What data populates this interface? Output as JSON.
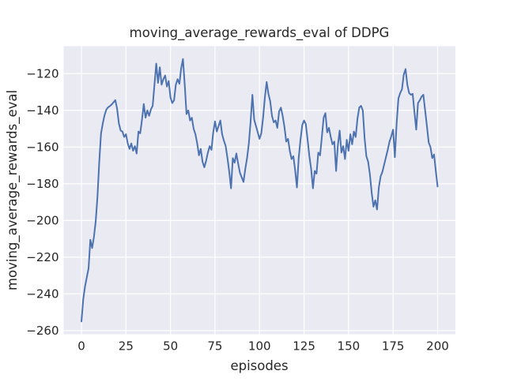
{
  "figure": {
    "title": "moving_average_rewards_eval of DDPG",
    "xlabel": "episodes",
    "ylabel": "moving_average_rewards_eval"
  },
  "chart_data": {
    "type": "line",
    "title": "moving_average_rewards_eval of DDPG",
    "xlabel": "episodes",
    "ylabel": "moving_average_rewards_eval",
    "grid": true,
    "legend_position": "none",
    "background_color": "#eaeaf2",
    "grid_color": "#ffffff",
    "text_color": "#262626",
    "line_color": "#4c72b0",
    "x_ticks": [
      0,
      25,
      50,
      75,
      100,
      125,
      150,
      175,
      200
    ],
    "y_ticks": [
      -120,
      -140,
      -160,
      -180,
      -200,
      -220,
      -240,
      -260
    ],
    "xlim": [
      -10,
      210
    ],
    "ylim": [
      -262,
      -105
    ],
    "x_start": 0,
    "x_step": 1,
    "series": [
      {
        "name": "moving_average_rewards_eval",
        "values": [
          -255,
          -243,
          -236,
          -231,
          -226,
          -210.5,
          -215,
          -209,
          -200.5,
          -187,
          -168,
          -152.5,
          -147,
          -142.5,
          -139.5,
          -138.3,
          -137.6,
          -136.8,
          -135.6,
          -134.4,
          -139,
          -147,
          -151,
          -151.5,
          -154.5,
          -153,
          -158,
          -161,
          -158,
          -162,
          -159.5,
          -163.5,
          -151.5,
          -152.5,
          -145,
          -136.5,
          -144,
          -140,
          -143,
          -139.5,
          -137.5,
          -126,
          -114.5,
          -125,
          -116.5,
          -126,
          -123,
          -121,
          -127,
          -124,
          -133,
          -136,
          -134.5,
          -126,
          -123,
          -125.5,
          -117,
          -112,
          -126,
          -142,
          -140,
          -145.5,
          -144,
          -150,
          -153,
          -158,
          -164.5,
          -161,
          -168,
          -171,
          -167.5,
          -163,
          -159.5,
          -161.5,
          -152,
          -146,
          -151.5,
          -148.5,
          -145.5,
          -153,
          -156.5,
          -159.5,
          -166,
          -173.5,
          -182.5,
          -166,
          -168.5,
          -163.5,
          -169,
          -174,
          -176.5,
          -179,
          -172,
          -166,
          -158,
          -146,
          -131.5,
          -145,
          -148.5,
          -152,
          -155.5,
          -152.5,
          -144,
          -133,
          -124.5,
          -131,
          -135,
          -143,
          -146.5,
          -145.5,
          -149.5,
          -140.5,
          -138.5,
          -143,
          -149,
          -157,
          -155.5,
          -162,
          -166.5,
          -165,
          -172.5,
          -182,
          -166,
          -156,
          -148,
          -145.5,
          -147.5,
          -156,
          -165,
          -172,
          -182.5,
          -173,
          -174.5,
          -163,
          -164.5,
          -154.5,
          -144,
          -141.5,
          -152,
          -149.5,
          -154.5,
          -158.5,
          -157,
          -173,
          -159,
          -151,
          -163,
          -159.5,
          -166.5,
          -156,
          -162,
          -153,
          -158.5,
          -151.5,
          -154.5,
          -144.5,
          -138.5,
          -137.5,
          -140,
          -155,
          -165,
          -168,
          -175,
          -185,
          -192.5,
          -189,
          -194,
          -182,
          -176,
          -173.5,
          -169.5,
          -165.5,
          -161.5,
          -157,
          -154,
          -150.5,
          -165.5,
          -147,
          -133.5,
          -130.5,
          -128.5,
          -120.5,
          -117.5,
          -126,
          -130.5,
          -131.5,
          -131,
          -141,
          -150.5,
          -136,
          -134.5,
          -132.5,
          -131.5,
          -140,
          -148.5,
          -157.5,
          -160,
          -166,
          -164,
          -173,
          -181.5
        ]
      }
    ]
  }
}
